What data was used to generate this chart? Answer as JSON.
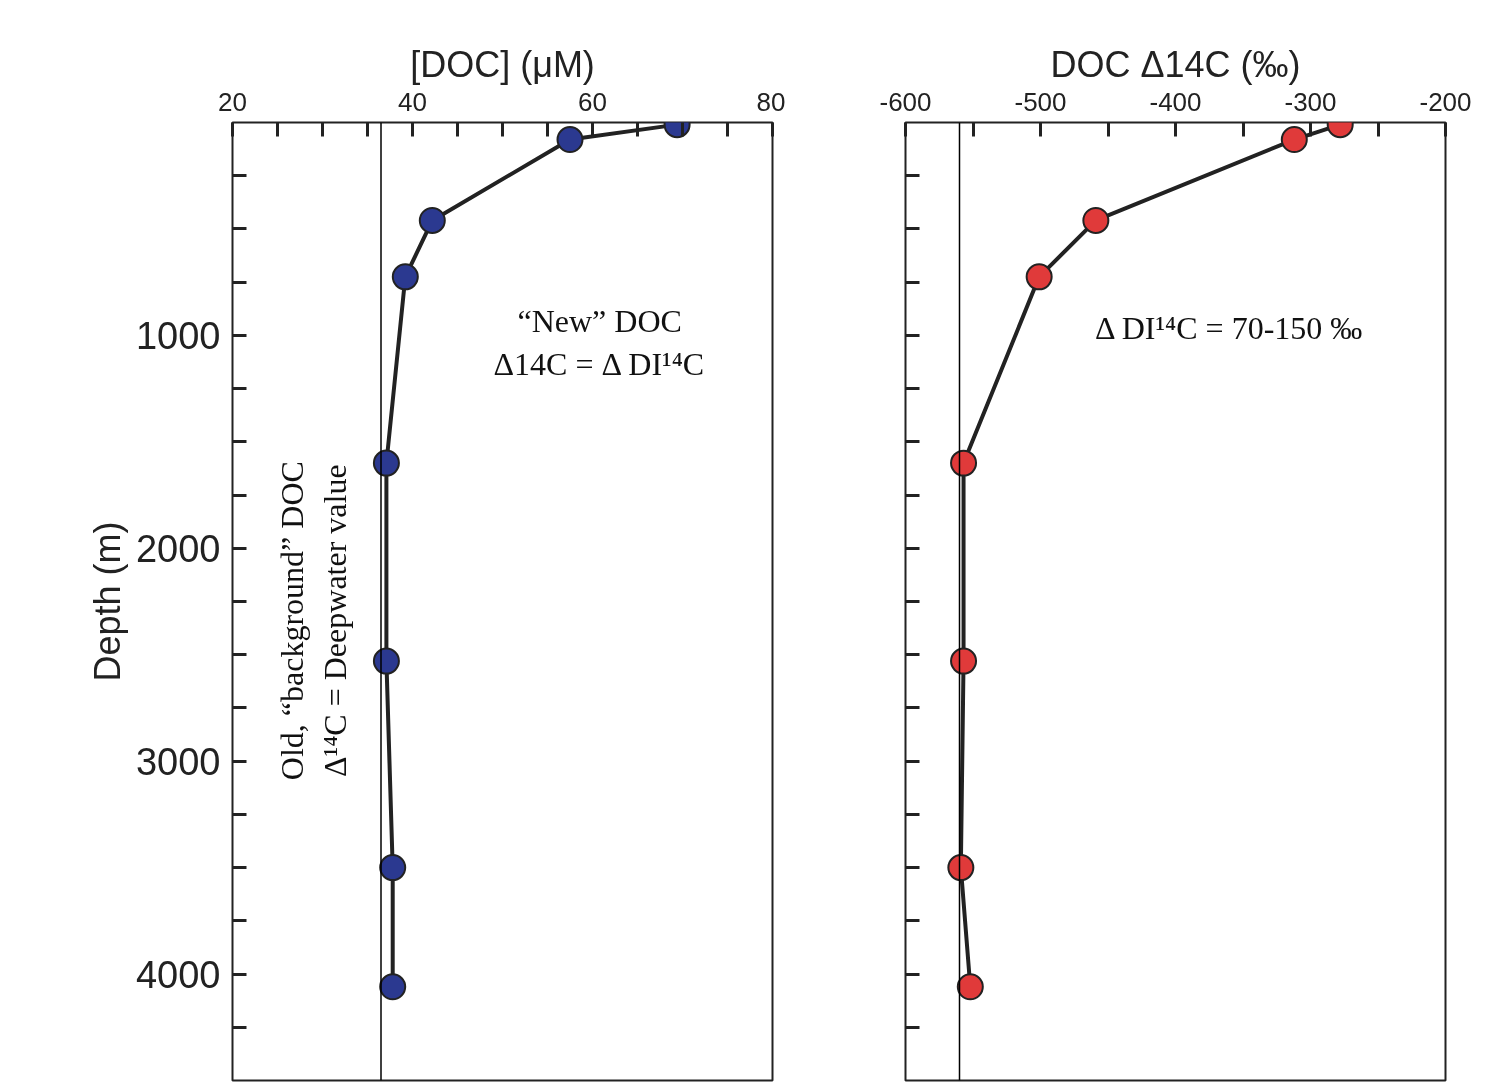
{
  "chart_data": [
    {
      "type": "line",
      "xlabel": "[DOC] (μM)",
      "ylabel": "Depth (m)",
      "xlim": [
        20,
        80
      ],
      "ylim": [
        4500,
        0
      ],
      "xticks": [
        20,
        {
          "value": 25,
          "label": null
        },
        {
          "value": 30,
          "label": null
        },
        {
          "value": 35,
          "label": null
        },
        40,
        {
          "value": 45,
          "label": null
        },
        {
          "value": 50,
          "label": null
        },
        {
          "value": 55,
          "label": null
        },
        60,
        {
          "value": 65,
          "label": null
        },
        {
          "value": 70,
          "label": null
        },
        {
          "value": 75,
          "label": null
        },
        80
      ],
      "yticks": [
        {
          "value": 250,
          "label": null
        },
        {
          "value": 500,
          "label": null
        },
        {
          "value": 750,
          "label": null
        },
        1000,
        {
          "value": 1250,
          "label": null
        },
        {
          "value": 1500,
          "label": null
        },
        {
          "value": 1750,
          "label": null
        },
        2000,
        {
          "value": 2250,
          "label": null
        },
        {
          "value": 2500,
          "label": null
        },
        {
          "value": 2750,
          "label": null
        },
        3000,
        {
          "value": 3250,
          "label": null
        },
        {
          "value": 3500,
          "label": null
        },
        {
          "value": 3750,
          "label": null
        },
        4000,
        {
          "value": 4250,
          "label": null
        }
      ],
      "marker": "circle",
      "grid": false,
      "series": [
        {
          "color": "#2b3990",
          "x": [
            69.4,
            57.5,
            42.2,
            39.2,
            37.1,
            37.1,
            37.8,
            37.8
          ],
          "values": [
            10,
            80,
            460,
            725,
            1600,
            2530,
            3500,
            4060
          ]
        }
      ],
      "ref_lines": [
        {
          "axis": "x",
          "value": 36.5,
          "label": null,
          "color": "#000000"
        }
      ],
      "annotations": [
        "“New” DOC\nΔ14C = Δ DI¹⁴C",
        "Old, “background” DOC\nΔ¹⁴C = Deepwater value"
      ]
    },
    {
      "type": "line",
      "xlabel": "DOC Δ14C (‰)",
      "xlim": [
        -600,
        -200
      ],
      "ylim": [
        4500,
        0
      ],
      "xticks": [
        -600,
        {
          "value": -550,
          "label": null
        },
        -500,
        {
          "value": -450,
          "label": null
        },
        -400,
        {
          "value": -350,
          "label": null
        },
        -300,
        {
          "value": -250,
          "label": null
        },
        -200
      ],
      "yticks": [
        {
          "value": 250,
          "label": null
        },
        {
          "value": 500,
          "label": null
        },
        {
          "value": 750,
          "label": null
        },
        {
          "value": 1000,
          "label": null
        },
        {
          "value": 1250,
          "label": null
        },
        {
          "value": 1500,
          "label": null
        },
        {
          "value": 1750,
          "label": null
        },
        {
          "value": 2000,
          "label": null
        },
        {
          "value": 2250,
          "label": null
        },
        {
          "value": 2500,
          "label": null
        },
        {
          "value": 2750,
          "label": null
        },
        {
          "value": 3000,
          "label": null
        },
        {
          "value": 3250,
          "label": null
        },
        {
          "value": 3500,
          "label": null
        },
        {
          "value": 3750,
          "label": null
        },
        {
          "value": 4000,
          "label": null
        },
        {
          "value": 4250,
          "label": null
        }
      ],
      "tick_labels": "x",
      "marker": "circle",
      "grid": false,
      "series": [
        {
          "color": "#e03a3a",
          "x": [
            -278,
            -312,
            -459,
            -501,
            -557,
            -557,
            -559,
            -552
          ],
          "values": [
            10,
            80,
            460,
            725,
            1600,
            2530,
            3500,
            4060
          ]
        }
      ],
      "ref_lines": [
        {
          "axis": "x",
          "value": -560,
          "label": null,
          "color": "#000000"
        }
      ],
      "annotations": [
        "Δ DI¹⁴C = 70-150 ‰"
      ]
    }
  ]
}
